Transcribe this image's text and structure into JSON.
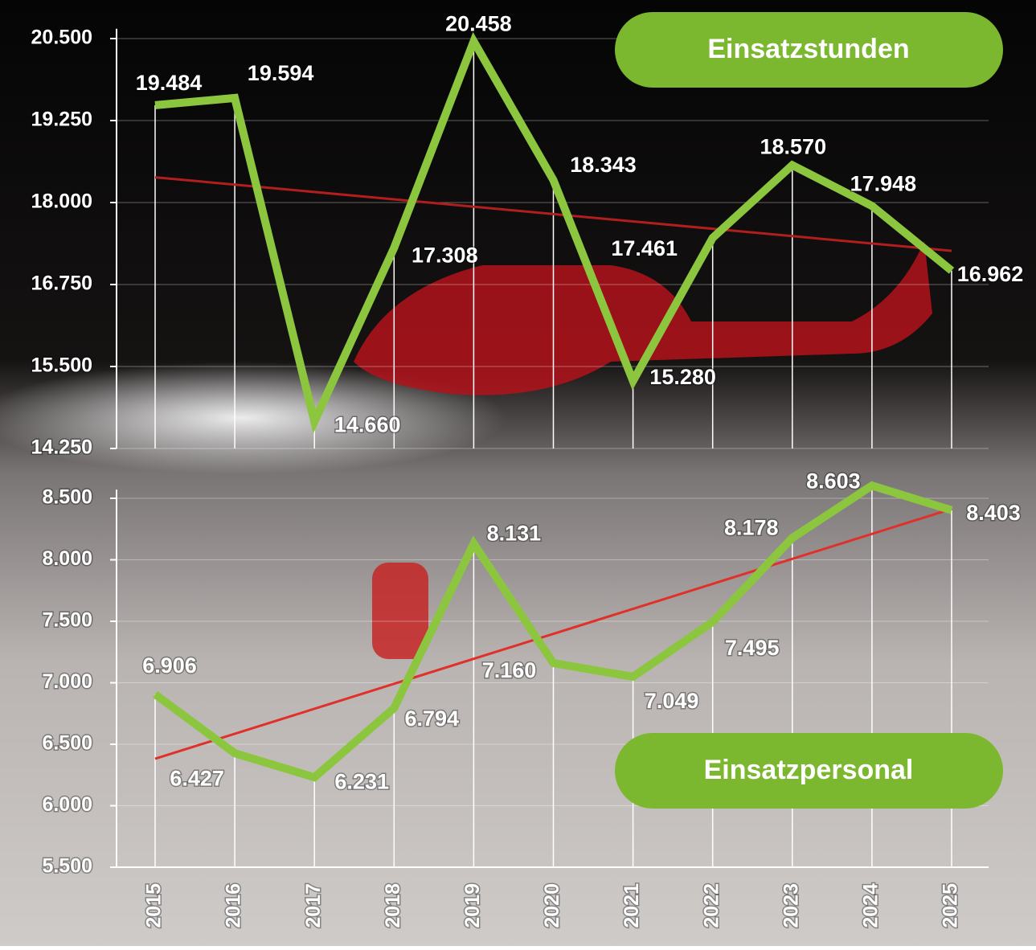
{
  "chart_data": [
    {
      "type": "line",
      "series": [
        {
          "name": "Einsatzstunden",
          "color": "#8cc63f",
          "values": [
            19484,
            19594,
            14660,
            17308,
            20458,
            18343,
            15280,
            17461,
            18570,
            17948,
            16962
          ],
          "value_labels": [
            "19.484",
            "19.594",
            "14.660",
            "17.308",
            "20.458",
            "18.343",
            "15.280",
            "17.461",
            "18.570",
            "17.948",
            "16.962"
          ]
        }
      ],
      "ylim": [
        14250,
        20650
      ],
      "yticks": [
        {
          "value": 14250,
          "label": "14.250"
        },
        {
          "value": 15500,
          "label": "15.500"
        },
        {
          "value": 16750,
          "label": "16.750"
        },
        {
          "value": 18000,
          "label": "18.000"
        },
        {
          "value": 19250,
          "label": "19.250"
        },
        {
          "value": 20500,
          "label": "20.500"
        }
      ],
      "grid": true,
      "trendline_color": "#b01e1e"
    },
    {
      "type": "line",
      "categories": [
        "2015",
        "2016",
        "2017",
        "2018",
        "2019",
        "2020",
        "2021",
        "2022",
        "2023",
        "2024",
        "2025"
      ],
      "series": [
        {
          "name": "Einsatzpersonal",
          "color": "#8cc63f",
          "values": [
            6906,
            6427,
            6231,
            6794,
            8131,
            7160,
            7049,
            7495,
            8178,
            8603,
            8403
          ],
          "value_labels": [
            "6.906",
            "6.427",
            "6.231",
            "6.794",
            "8.131",
            "7.160",
            "7.049",
            "7.495",
            "8.178",
            "8.603",
            "8.403"
          ]
        }
      ],
      "ylim": [
        5500,
        8570
      ],
      "yticks": [
        {
          "value": 5500,
          "label": "5.500"
        },
        {
          "value": 6000,
          "label": "6.000"
        },
        {
          "value": 6500,
          "label": "6.500"
        },
        {
          "value": 7000,
          "label": "7.000"
        },
        {
          "value": 7500,
          "label": "7.500"
        },
        {
          "value": 8000,
          "label": "8.000"
        },
        {
          "value": 8500,
          "label": "8.500"
        }
      ],
      "grid": true,
      "trendline_color": "#e0302a"
    }
  ]
}
